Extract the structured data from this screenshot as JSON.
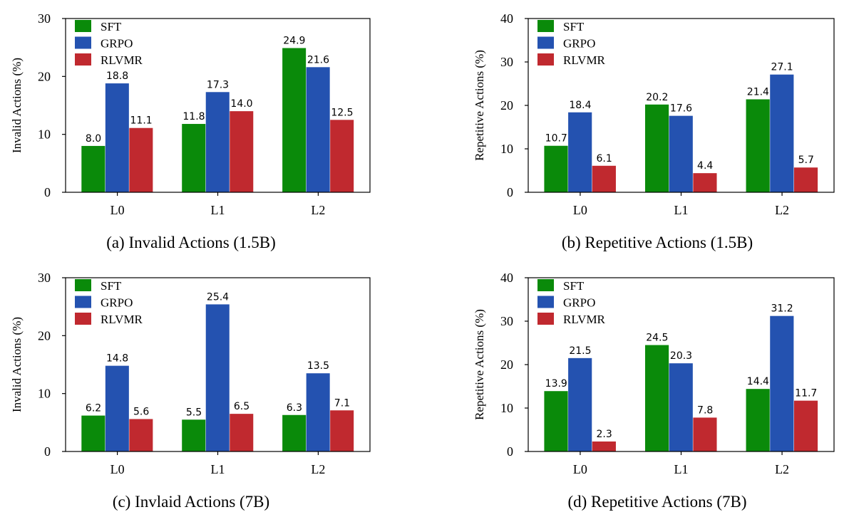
{
  "colors": {
    "SFT": "#0a8a0a",
    "GRPO": "#2452b0",
    "RLVMR": "#c0292f"
  },
  "chart_data": [
    {
      "type": "bar",
      "title": "(a) Invalid Actions (1.5B)",
      "ylabel": "Invalid Actions (%)",
      "xlabel": "",
      "categories": [
        "L0",
        "L1",
        "L2"
      ],
      "ylim": [
        0,
        30
      ],
      "yticks": [
        0,
        10,
        20,
        30
      ],
      "legend_position": "top-left",
      "series": [
        {
          "name": "SFT",
          "values": [
            8.0,
            11.8,
            24.9
          ],
          "labels": [
            "8.0",
            "11.8",
            "24.9"
          ]
        },
        {
          "name": "GRPO",
          "values": [
            18.8,
            17.3,
            21.6
          ],
          "labels": [
            "18.8",
            "17.3",
            "21.6"
          ]
        },
        {
          "name": "RLVMR",
          "values": [
            11.1,
            14.0,
            12.5
          ],
          "labels": [
            "11.1",
            "14.0",
            "12.5"
          ]
        }
      ]
    },
    {
      "type": "bar",
      "title": "(b) Repetitive Actions (1.5B)",
      "ylabel": "Repetitive Actions (%)",
      "xlabel": "",
      "categories": [
        "L0",
        "L1",
        "L2"
      ],
      "ylim": [
        0,
        40
      ],
      "yticks": [
        0,
        10,
        20,
        30,
        40
      ],
      "legend_position": "top-left",
      "series": [
        {
          "name": "SFT",
          "values": [
            10.7,
            20.2,
            21.4
          ],
          "labels": [
            "10.7",
            "20.2",
            "21.4"
          ]
        },
        {
          "name": "GRPO",
          "values": [
            18.4,
            17.6,
            27.1
          ],
          "labels": [
            "18.4",
            "17.6",
            "27.1"
          ]
        },
        {
          "name": "RLVMR",
          "values": [
            6.1,
            4.4,
            5.7
          ],
          "labels": [
            "6.1",
            "4.4",
            "5.7"
          ]
        }
      ]
    },
    {
      "type": "bar",
      "title": "(c) Invlaid Actions (7B)",
      "ylabel": "Invalid Actions (%)",
      "xlabel": "",
      "categories": [
        "L0",
        "L1",
        "L2"
      ],
      "ylim": [
        0,
        30
      ],
      "yticks": [
        0,
        10,
        20,
        30
      ],
      "legend_position": "top-left",
      "series": [
        {
          "name": "SFT",
          "values": [
            6.2,
            5.5,
            6.3
          ],
          "labels": [
            "6.2",
            "5.5",
            "6.3"
          ]
        },
        {
          "name": "GRPO",
          "values": [
            14.8,
            25.4,
            13.5
          ],
          "labels": [
            "14.8",
            "25.4",
            "13.5"
          ]
        },
        {
          "name": "RLVMR",
          "values": [
            5.6,
            6.5,
            7.1
          ],
          "labels": [
            "5.6",
            "6.5",
            "7.1"
          ]
        }
      ]
    },
    {
      "type": "bar",
      "title": "(d) Repetitive Actions (7B)",
      "ylabel": "Repetitive Actions (%)",
      "xlabel": "",
      "categories": [
        "L0",
        "L1",
        "L2"
      ],
      "ylim": [
        0,
        40
      ],
      "yticks": [
        0,
        10,
        20,
        30,
        40
      ],
      "legend_position": "top-left",
      "series": [
        {
          "name": "SFT",
          "values": [
            13.9,
            24.5,
            14.4
          ],
          "labels": [
            "13.9",
            "24.5",
            "14.4"
          ]
        },
        {
          "name": "GRPO",
          "values": [
            21.5,
            20.3,
            31.2
          ],
          "labels": [
            "21.5",
            "20.3",
            "31.2"
          ]
        },
        {
          "name": "RLVMR",
          "values": [
            2.3,
            7.8,
            11.7
          ],
          "labels": [
            "2.3",
            "7.8",
            "11.7"
          ]
        }
      ]
    }
  ]
}
